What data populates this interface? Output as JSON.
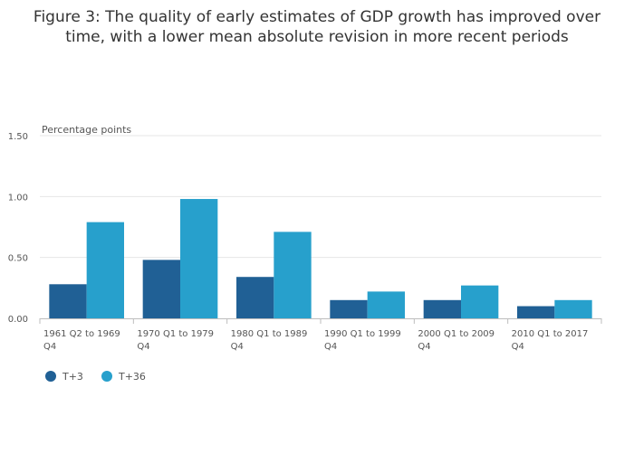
{
  "chart_data": {
    "type": "bar",
    "title_lines": [
      "Figure 3: The quality of early estimates of GDP growth has improved over",
      "time, with a lower mean absolute revision in more recent periods"
    ],
    "ylabel": "Percentage points",
    "xlabel": "",
    "ylim": [
      0,
      1.5
    ],
    "yticks": [
      "0.00",
      "0.50",
      "1.00",
      "1.50"
    ],
    "ytick_values": [
      0,
      0.5,
      1.0,
      1.5
    ],
    "grid": true,
    "legend_position": "bottom-left",
    "categories": [
      [
        "1961 Q2 to 1969",
        "Q4"
      ],
      [
        "1970 Q1 to 1979",
        "Q4"
      ],
      [
        "1980 Q1 to 1989",
        "Q4"
      ],
      [
        "1990 Q1 to 1999",
        "Q4"
      ],
      [
        "2000 Q1 to 2009",
        "Q4"
      ],
      [
        "2010 Q1 to 2017",
        "Q4"
      ]
    ],
    "series": [
      {
        "name": "T+3",
        "color": "#206095",
        "values": [
          0.28,
          0.48,
          0.34,
          0.15,
          0.15,
          0.1
        ]
      },
      {
        "name": "T+36",
        "color": "#27a0cc",
        "values": [
          0.79,
          0.98,
          0.71,
          0.22,
          0.27,
          0.15
        ]
      }
    ]
  }
}
